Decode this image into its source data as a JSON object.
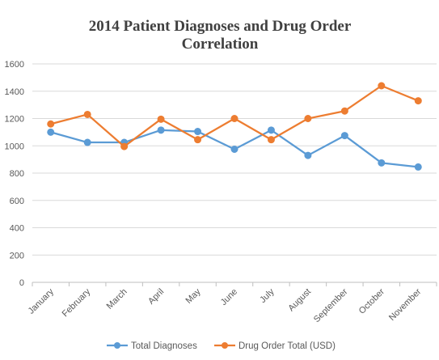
{
  "chart_data": {
    "type": "line",
    "title_lines": [
      "2014 Patient Diagnoses and Drug Order",
      "Correlation"
    ],
    "xlabel": "",
    "ylabel": "",
    "categories": [
      "January",
      "February",
      "March",
      "April",
      "May",
      "June",
      "July",
      "August",
      "September",
      "October",
      "November"
    ],
    "ylim": [
      0,
      1600
    ],
    "yticks": [
      "0",
      "200",
      "400",
      "600",
      "800",
      "1000",
      "1200",
      "1400",
      "1600"
    ],
    "grid": true,
    "legend_position": "bottom",
    "series": [
      {
        "name": "Total Diagnoses",
        "color": "#5B9BD5",
        "values": [
          1100,
          1025,
          1025,
          1115,
          1105,
          975,
          1115,
          930,
          1075,
          875,
          845
        ]
      },
      {
        "name": "Drug Order Total (USD)",
        "color": "#ED7D31",
        "values": [
          1160,
          1230,
          995,
          1195,
          1045,
          1200,
          1045,
          1200,
          1255,
          1440,
          1330
        ]
      }
    ]
  }
}
